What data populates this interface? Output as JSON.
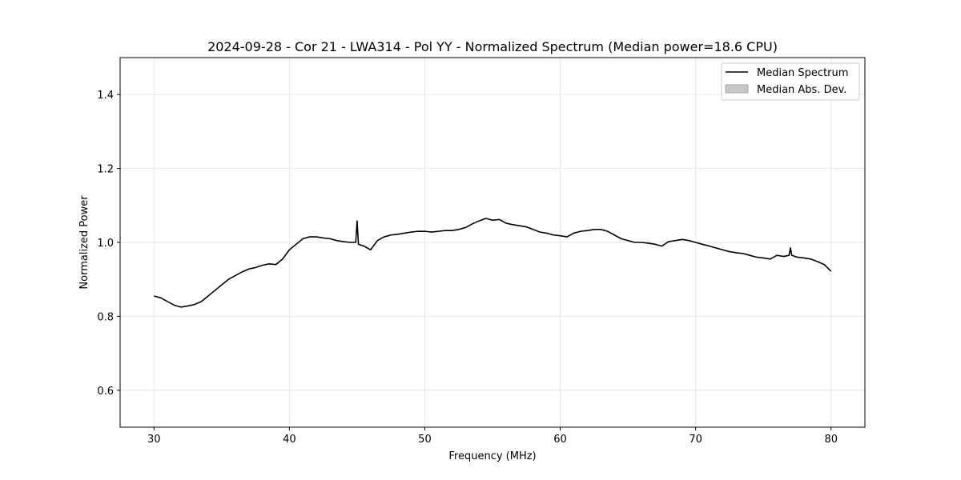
{
  "chart_data": {
    "type": "line",
    "title": "2024-09-28 - Cor 21 - LWA314 - Pol YY - Normalized Spectrum (Median power=18.6 CPU)",
    "xlabel": "Frequency (MHz)",
    "ylabel": "Normalized Power",
    "xlim": [
      27.5,
      82.5
    ],
    "ylim": [
      0.5,
      1.5
    ],
    "x_ticks": [
      30,
      40,
      50,
      60,
      70,
      80
    ],
    "y_ticks": [
      0.6,
      0.8,
      1.0,
      1.2,
      1.4
    ],
    "x_tick_labels": [
      "30",
      "40",
      "50",
      "60",
      "70",
      "80"
    ],
    "y_tick_labels": [
      "0.6",
      "0.8",
      "1.0",
      "1.2",
      "1.4"
    ],
    "grid": true,
    "legend_position": "top-right",
    "legend": [
      "Median Spectrum",
      "Median Abs. Dev."
    ],
    "series": [
      {
        "name": "Median Spectrum",
        "color": "#000000",
        "x": [
          30.0,
          30.5,
          31.0,
          31.5,
          32.0,
          32.5,
          33.0,
          33.5,
          34.0,
          34.5,
          35.0,
          35.5,
          36.0,
          36.5,
          37.0,
          37.5,
          38.0,
          38.5,
          39.0,
          39.5,
          40.0,
          40.5,
          41.0,
          41.5,
          42.0,
          42.5,
          43.0,
          43.5,
          44.0,
          44.5,
          44.9,
          45.0,
          45.1,
          45.5,
          46.0,
          46.5,
          47.0,
          47.5,
          48.0,
          48.5,
          49.0,
          49.5,
          50.0,
          50.5,
          51.0,
          51.5,
          52.0,
          52.5,
          53.0,
          53.5,
          54.0,
          54.5,
          55.0,
          55.5,
          56.0,
          56.5,
          57.0,
          57.5,
          58.0,
          58.5,
          59.0,
          59.5,
          60.0,
          60.5,
          61.0,
          61.5,
          62.0,
          62.5,
          63.0,
          63.5,
          64.0,
          64.5,
          65.0,
          65.5,
          66.0,
          66.5,
          67.0,
          67.5,
          68.0,
          68.5,
          69.0,
          69.5,
          70.0,
          70.5,
          71.0,
          71.5,
          72.0,
          72.5,
          73.0,
          73.5,
          74.0,
          74.5,
          75.0,
          75.5,
          76.0,
          76.5,
          76.9,
          77.0,
          77.1,
          77.5,
          78.0,
          78.5,
          79.0,
          79.5,
          80.0
        ],
        "y": [
          0.855,
          0.85,
          0.84,
          0.83,
          0.825,
          0.828,
          0.832,
          0.84,
          0.855,
          0.87,
          0.885,
          0.9,
          0.91,
          0.92,
          0.928,
          0.932,
          0.938,
          0.942,
          0.94,
          0.955,
          0.98,
          0.995,
          1.01,
          1.015,
          1.015,
          1.012,
          1.01,
          1.005,
          1.002,
          1.0,
          1.0,
          1.058,
          0.995,
          0.99,
          0.98,
          1.005,
          1.015,
          1.02,
          1.022,
          1.025,
          1.028,
          1.03,
          1.03,
          1.028,
          1.03,
          1.032,
          1.032,
          1.035,
          1.04,
          1.05,
          1.058,
          1.065,
          1.06,
          1.062,
          1.052,
          1.048,
          1.045,
          1.042,
          1.035,
          1.028,
          1.025,
          1.02,
          1.018,
          1.015,
          1.025,
          1.03,
          1.032,
          1.035,
          1.035,
          1.03,
          1.02,
          1.01,
          1.005,
          1.0,
          1.0,
          0.998,
          0.995,
          0.99,
          1.002,
          1.005,
          1.008,
          1.005,
          1.0,
          0.995,
          0.99,
          0.985,
          0.98,
          0.975,
          0.972,
          0.97,
          0.965,
          0.96,
          0.958,
          0.955,
          0.965,
          0.962,
          0.965,
          0.985,
          0.965,
          0.96,
          0.958,
          0.955,
          0.948,
          0.94,
          0.922
        ]
      },
      {
        "name": "Median Abs. Dev.",
        "color": "#c8c8c8",
        "type": "band"
      }
    ]
  }
}
